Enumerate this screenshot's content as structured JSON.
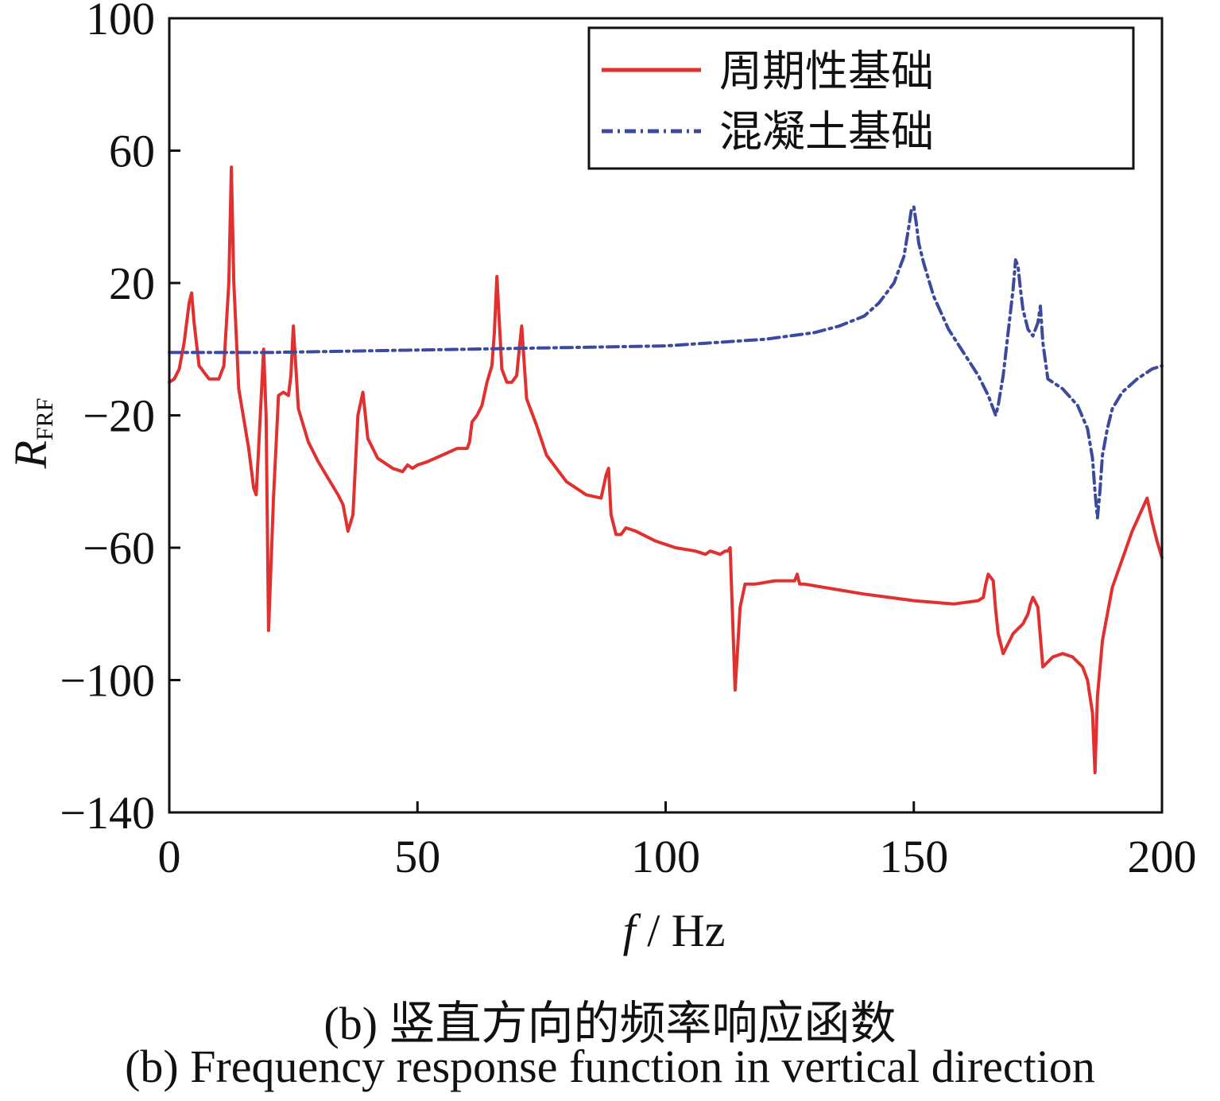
{
  "chart_data": {
    "type": "line",
    "xlabel_var": "f",
    "xlabel_unit": " / Hz",
    "ylabel_var": "R",
    "ylabel_sub": "FRF",
    "xlim": [
      0,
      200
    ],
    "ylim": [
      -140,
      100
    ],
    "xticks": [
      0,
      50,
      100,
      150,
      200
    ],
    "yticks": [
      100,
      60,
      20,
      -20,
      -60,
      -100,
      -140
    ],
    "ytick_labels": [
      "100",
      "60",
      "20",
      "−20",
      "−60",
      "−100",
      "−140"
    ],
    "grid": false,
    "legend_position": "top-right",
    "series": [
      {
        "name": "周期性基础",
        "color": "#e03030",
        "style": "solid",
        "x": [
          0,
          1,
          2,
          3,
          4,
          4.5,
          5,
          6,
          8,
          10,
          11,
          12,
          12.5,
          13,
          14,
          16,
          17,
          17.5,
          18,
          19,
          19.5,
          20,
          21,
          22,
          23,
          24,
          24.5,
          25,
          26,
          28,
          30,
          32,
          34,
          35,
          36,
          37,
          38,
          39,
          40,
          42,
          45,
          47,
          48,
          49,
          50,
          52,
          55,
          58,
          60,
          60.5,
          61,
          62,
          63,
          64,
          65,
          65.5,
          66,
          67,
          68,
          69,
          70,
          70.5,
          71,
          72,
          74,
          76,
          80,
          84,
          87,
          88,
          88.5,
          89,
          90,
          91,
          92,
          94,
          98,
          102,
          106,
          108,
          109,
          111,
          112,
          112.5,
          113,
          114,
          115,
          116,
          118,
          122,
          126,
          126.5,
          127,
          128,
          132,
          140,
          150,
          158,
          163,
          164,
          164.5,
          165,
          166,
          166.5,
          167,
          168,
          170,
          172,
          173,
          173.5,
          174,
          175,
          176,
          178,
          180,
          182,
          184,
          185,
          186,
          186.5,
          187,
          188,
          190,
          194,
          197,
          198,
          198.5,
          199,
          200
        ],
        "y": [
          -10,
          -9,
          -6,
          2,
          14,
          17,
          8,
          -5,
          -9,
          -9,
          -5,
          20,
          55,
          20,
          -12,
          -30,
          -42,
          -44,
          -30,
          0,
          -20,
          -85,
          -45,
          -14,
          -13,
          -14,
          -8,
          7,
          -18,
          -28,
          -34,
          -39,
          -44,
          -47,
          -55,
          -50,
          -20,
          -13,
          -27,
          -33,
          -36,
          -37,
          -35,
          -36,
          -35,
          -34,
          -32,
          -30,
          -30,
          -28,
          -22,
          -20,
          -17,
          -10,
          -5,
          5,
          22,
          -6,
          -10,
          -10,
          -8,
          0,
          7,
          -15,
          -23,
          -32,
          -40,
          -44,
          -45,
          -38,
          -36,
          -50,
          -56,
          -56,
          -54,
          -55,
          -58,
          -60,
          -61,
          -62,
          -61,
          -62,
          -61,
          -61,
          -60,
          -103,
          -78,
          -71,
          -71,
          -70,
          -70,
          -68,
          -71,
          -71,
          -72,
          -74,
          -76,
          -77,
          -76,
          -75,
          -71,
          -68,
          -70,
          -79,
          -86,
          -92,
          -86,
          -83,
          -80,
          -77,
          -75,
          -78,
          -96,
          -93,
          -92,
          -93,
          -96,
          -100,
          -110,
          -128,
          -105,
          -88,
          -72,
          -55,
          -45,
          -52,
          -55,
          -58,
          -63
        ]
      },
      {
        "name": "混凝土基础",
        "color": "#3c4a9e",
        "style": "dashdot",
        "x": [
          0,
          20,
          40,
          60,
          80,
          100,
          110,
          120,
          130,
          135,
          140,
          143,
          146,
          148,
          149,
          149.5,
          150,
          150.5,
          151,
          152,
          154,
          157,
          160,
          163,
          165,
          166,
          166.5,
          167,
          168,
          169,
          170,
          170.5,
          171,
          171.5,
          172,
          173,
          174,
          175,
          175.5,
          176,
          177,
          180,
          183,
          185,
          186,
          186.5,
          187,
          187.5,
          188,
          189,
          190,
          192,
          195,
          198,
          200
        ],
        "y": [
          -1,
          -1,
          -0.5,
          0,
          0.5,
          1,
          2,
          3,
          5,
          7,
          10,
          14,
          20,
          28,
          37,
          42,
          43,
          38,
          32,
          26,
          16,
          6,
          -1,
          -8,
          -14,
          -18,
          -20,
          -17,
          -8,
          5,
          18,
          27,
          25,
          18,
          12,
          6,
          4,
          8,
          13,
          2,
          -9,
          -12,
          -17,
          -24,
          -33,
          -43,
          -51,
          -43,
          -32,
          -24,
          -18,
          -13,
          -9,
          -6,
          -5
        ]
      }
    ]
  },
  "caption": {
    "zh": "(b) 竖直方向的频率响应函数",
    "en": "(b) Frequency response function in vertical direction"
  }
}
